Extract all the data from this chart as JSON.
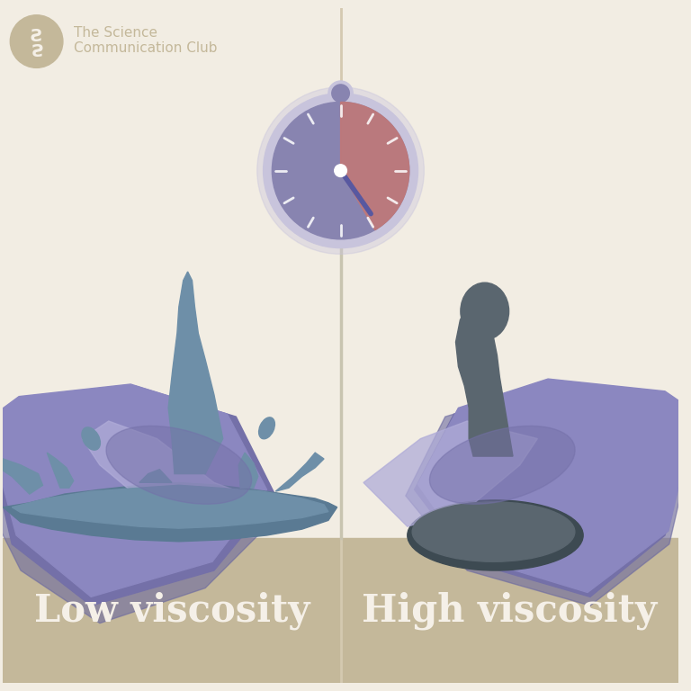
{
  "bg_color": "#f2ede3",
  "divider_color": "#d4c9b0",
  "label_bg_color": "#c4b89a",
  "label_text_color": "#f5f0e8",
  "beaker_body": "#8b87c0",
  "beaker_rim": "#7470a8",
  "beaker_highlight": "#b0acd8",
  "beaker_shadow": "#6a68a0",
  "water_color": "#6e8fa8",
  "water_dark": "#5a7a93",
  "pitch_color": "#5a666f",
  "pitch_dark": "#3d4a52",
  "clock_outer_ring": "#c8c4dc",
  "clock_face_blue": "#8884b0",
  "clock_face_red": "#c07878",
  "clock_hand_color": "#5858a0",
  "clock_stem": "#c8c4b0",
  "title_left": "Low viscosity",
  "title_right": "High viscosity",
  "logo_text1": "The Science",
  "logo_text2": "Communication Club",
  "logo_bg": "#c4b89a",
  "logo_fg": "#f5f0e8"
}
